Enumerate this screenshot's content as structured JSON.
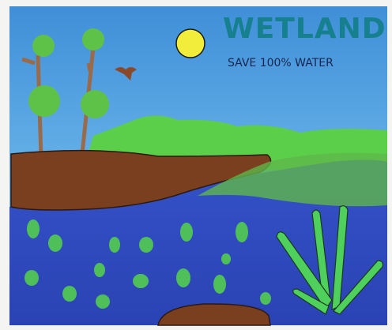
{
  "title": "WETLAND",
  "subtitle": "SAVE 100% WATER"
}
